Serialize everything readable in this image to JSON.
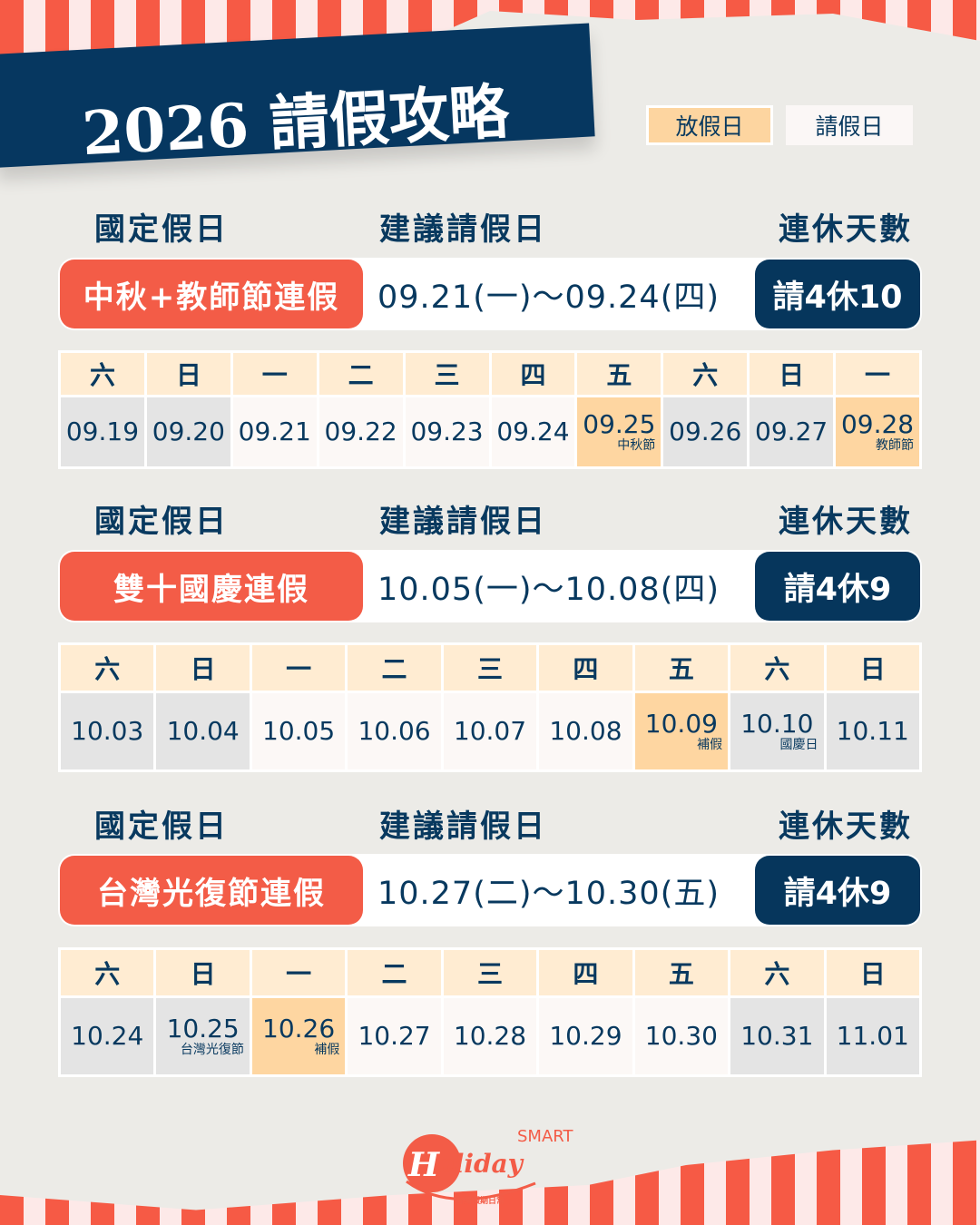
{
  "title": "2026 請假攻略",
  "legend": {
    "off": "放假日",
    "leave": "請假日"
  },
  "colors": {
    "navy": "#06365c",
    "red": "#f35c47",
    "holiday": "#fed6a1",
    "weekend": "#e4e4e4",
    "leave": "#fcf8f6",
    "header": "#ffecd2"
  },
  "column_headers": {
    "holiday": "國定假日",
    "suggest": "建議請假日",
    "days": "連休天數"
  },
  "sections": [
    {
      "name": "中秋+教師節連假",
      "range": "09.21(一)～09.24(四)",
      "count": "請4休10",
      "days": [
        {
          "wd": "六",
          "d": "09.19",
          "t": "w"
        },
        {
          "wd": "日",
          "d": "09.20",
          "t": "w"
        },
        {
          "wd": "一",
          "d": "09.21",
          "t": "l"
        },
        {
          "wd": "二",
          "d": "09.22",
          "t": "l"
        },
        {
          "wd": "三",
          "d": "09.23",
          "t": "l"
        },
        {
          "wd": "四",
          "d": "09.24",
          "t": "l"
        },
        {
          "wd": "五",
          "d": "09.25",
          "t": "h",
          "note": "中秋節"
        },
        {
          "wd": "六",
          "d": "09.26",
          "t": "w"
        },
        {
          "wd": "日",
          "d": "09.27",
          "t": "w"
        },
        {
          "wd": "一",
          "d": "09.28",
          "t": "h",
          "note": "教師節"
        }
      ]
    },
    {
      "name": "雙十國慶連假",
      "range": "10.05(一)～10.08(四)",
      "count": "請4休9",
      "days": [
        {
          "wd": "六",
          "d": "10.03",
          "t": "w"
        },
        {
          "wd": "日",
          "d": "10.04",
          "t": "w"
        },
        {
          "wd": "一",
          "d": "10.05",
          "t": "l"
        },
        {
          "wd": "二",
          "d": "10.06",
          "t": "l"
        },
        {
          "wd": "三",
          "d": "10.07",
          "t": "l"
        },
        {
          "wd": "四",
          "d": "10.08",
          "t": "l"
        },
        {
          "wd": "五",
          "d": "10.09",
          "t": "h",
          "note": "補假"
        },
        {
          "wd": "六",
          "d": "10.10",
          "t": "w",
          "note": "國慶日"
        },
        {
          "wd": "日",
          "d": "10.11",
          "t": "w"
        }
      ]
    },
    {
      "name": "台灣光復節連假",
      "range": "10.27(二)～10.30(五)",
      "count": "請4休9",
      "days": [
        {
          "wd": "六",
          "d": "10.24",
          "t": "w"
        },
        {
          "wd": "日",
          "d": "10.25",
          "t": "w",
          "note": "台灣光復節"
        },
        {
          "wd": "一",
          "d": "10.26",
          "t": "h",
          "note": "補假"
        },
        {
          "wd": "二",
          "d": "10.27",
          "t": "l"
        },
        {
          "wd": "三",
          "d": "10.28",
          "t": "l"
        },
        {
          "wd": "四",
          "d": "10.29",
          "t": "l"
        },
        {
          "wd": "五",
          "d": "10.30",
          "t": "l"
        },
        {
          "wd": "六",
          "d": "10.31",
          "t": "w"
        },
        {
          "wd": "日",
          "d": "11.01",
          "t": "w"
        }
      ]
    }
  ],
  "logo": {
    "text": "Holiday",
    "smart": "SMART",
    "tagline": "台灣假期日常"
  }
}
